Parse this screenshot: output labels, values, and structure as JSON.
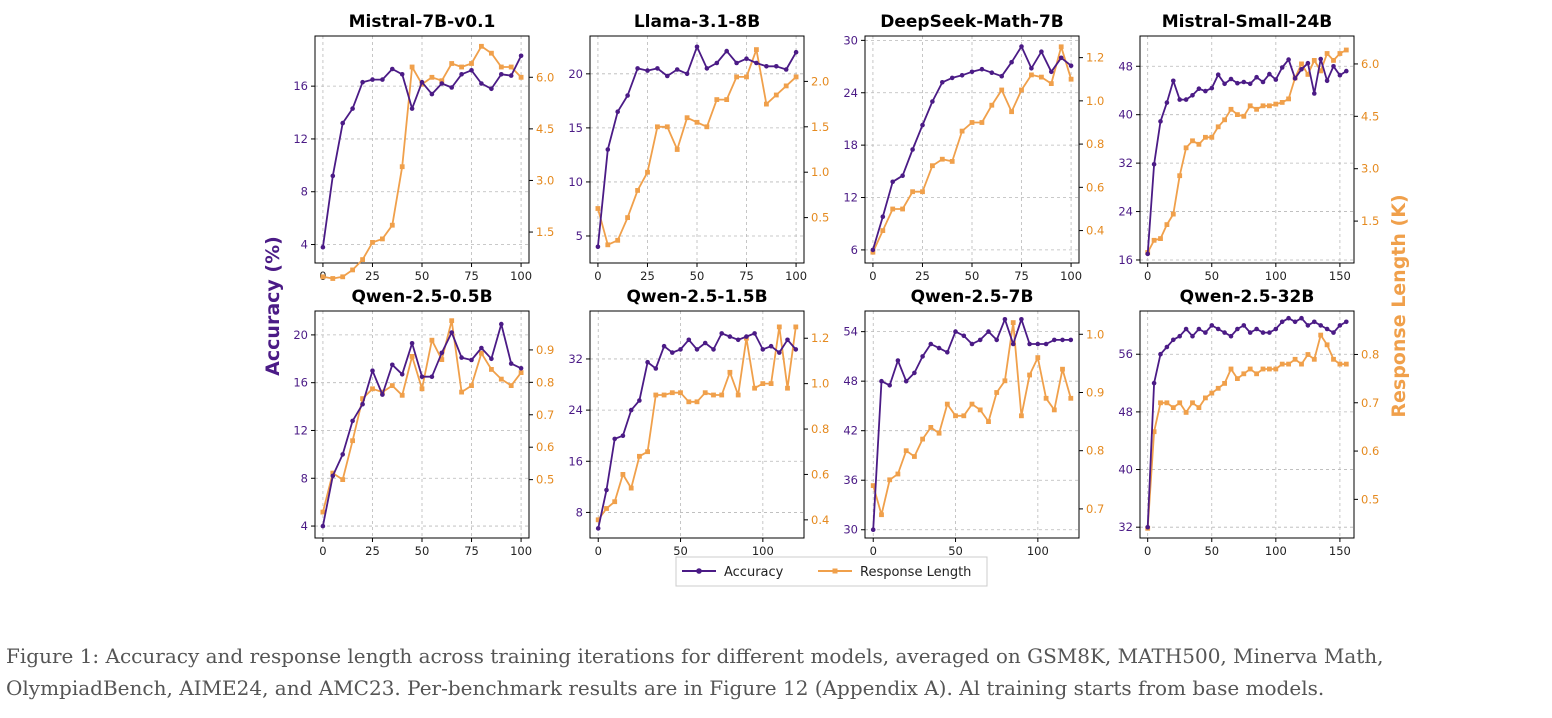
{
  "caption": {
    "line1": "Figure 1: Accuracy and response length across training iterations for different models, averaged on GSM8K, MATH500, Minerva Math,",
    "line2": "OlympiadBench, AIME24, and AMC23. Per-benchmark results are in Figure 12 (Appendix A). Al training starts from base models."
  },
  "colors": {
    "accuracy": "#4b1b86",
    "length": "#f0a04b",
    "length_tick": "#e58a1f",
    "grid": "#b8b8b8"
  },
  "chart_data": {
    "type": "line",
    "ylabel_left": "Accuracy (%)",
    "ylabel_right": "Response Length (K)",
    "legend": [
      "Accuracy",
      "Response Length"
    ],
    "legend_placement": "bottom-center",
    "grid": true,
    "panels": [
      {
        "title": "Mistral-7B-v0.1",
        "xlim": [
          -4,
          104
        ],
        "xticks": [
          0,
          25,
          50,
          75,
          100
        ],
        "ylim_left": [
          2.6,
          19.8
        ],
        "yticks_left": [
          4,
          8,
          12,
          16
        ],
        "ylim_right": [
          0.6,
          7.2
        ],
        "yticks_right": [
          1.5,
          3.0,
          4.5,
          6.0
        ],
        "x": [
          0,
          5,
          10,
          15,
          20,
          25,
          30,
          35,
          40,
          45,
          50,
          55,
          60,
          65,
          70,
          75,
          80,
          85,
          90,
          95,
          100
        ],
        "accuracy": [
          3.8,
          9.2,
          13.2,
          14.3,
          16.3,
          16.5,
          16.5,
          17.3,
          16.9,
          14.3,
          16.3,
          15.4,
          16.2,
          15.9,
          16.9,
          17.2,
          16.2,
          15.8,
          16.9,
          16.8,
          18.3
        ],
        "response_length": [
          0.2,
          0.15,
          0.2,
          0.4,
          0.7,
          1.2,
          1.3,
          1.7,
          3.4,
          6.3,
          5.8,
          6.0,
          5.9,
          6.4,
          6.3,
          6.4,
          6.9,
          6.7,
          6.3,
          6.3,
          6.0
        ]
      },
      {
        "title": "Llama-3.1-8B",
        "xlim": [
          -4,
          104
        ],
        "xticks": [
          0,
          25,
          50,
          75,
          100
        ],
        "ylim_left": [
          2.5,
          23.5
        ],
        "yticks_left": [
          5,
          10,
          15,
          20
        ],
        "ylim_right": [
          0.0,
          2.5
        ],
        "yticks_right": [
          0.5,
          1.0,
          1.5,
          2.0
        ],
        "x": [
          0,
          5,
          10,
          15,
          20,
          25,
          30,
          35,
          40,
          45,
          50,
          55,
          60,
          65,
          70,
          75,
          80,
          85,
          90,
          95,
          100
        ],
        "accuracy": [
          4.0,
          13.0,
          16.5,
          18.0,
          20.5,
          20.3,
          20.5,
          19.8,
          20.4,
          20.0,
          22.5,
          20.5,
          21.0,
          22.1,
          21.0,
          21.4,
          21.0,
          20.7,
          20.7,
          20.4,
          22.0
        ],
        "response_length": [
          0.6,
          0.2,
          0.25,
          0.5,
          0.8,
          1.0,
          1.5,
          1.5,
          1.25,
          1.6,
          1.55,
          1.5,
          1.8,
          1.8,
          2.05,
          2.05,
          2.35,
          1.75,
          1.85,
          1.95,
          2.05
        ]
      },
      {
        "title": "DeepSeek-Math-7B",
        "xlim": [
          -4,
          104
        ],
        "xticks": [
          0,
          25,
          50,
          75,
          100
        ],
        "ylim_left": [
          4.5,
          30.5
        ],
        "yticks_left": [
          6,
          12,
          18,
          24,
          30
        ],
        "ylim_right": [
          0.25,
          1.3
        ],
        "yticks_right": [
          0.4,
          0.6,
          0.8,
          1.0,
          1.2
        ],
        "x": [
          0,
          5,
          10,
          15,
          20,
          25,
          30,
          35,
          40,
          45,
          50,
          55,
          60,
          65,
          70,
          75,
          80,
          85,
          90,
          95,
          100
        ],
        "accuracy": [
          6.0,
          9.8,
          13.8,
          14.5,
          17.5,
          20.3,
          23.0,
          25.2,
          25.7,
          26.0,
          26.4,
          26.7,
          26.3,
          25.9,
          27.5,
          29.3,
          26.8,
          28.7,
          26.4,
          28.0,
          27.1
        ],
        "response_length": [
          0.3,
          0.4,
          0.5,
          0.5,
          0.58,
          0.58,
          0.7,
          0.73,
          0.72,
          0.86,
          0.9,
          0.9,
          0.98,
          1.05,
          0.95,
          1.05,
          1.12,
          1.11,
          1.08,
          1.25,
          1.1
        ]
      },
      {
        "title": "Mistral-Small-24B",
        "xlim": [
          -6,
          161
        ],
        "xticks": [
          0,
          50,
          100,
          150
        ],
        "ylim_left": [
          15.5,
          53.0
        ],
        "yticks_left": [
          16,
          24,
          32,
          40,
          48
        ],
        "ylim_right": [
          0.3,
          6.8
        ],
        "yticks_right": [
          1.5,
          3.0,
          4.5,
          6.0
        ],
        "x": [
          0,
          5,
          10,
          15,
          20,
          25,
          30,
          35,
          40,
          45,
          50,
          55,
          60,
          65,
          70,
          75,
          80,
          85,
          90,
          95,
          100,
          105,
          110,
          115,
          120,
          125,
          130,
          135,
          140,
          145,
          150,
          155
        ],
        "accuracy": [
          17.0,
          31.8,
          38.9,
          42.0,
          45.6,
          42.5,
          42.5,
          43.2,
          44.3,
          43.9,
          44.4,
          46.6,
          45.1,
          45.9,
          45.2,
          45.4,
          45.1,
          46.2,
          45.4,
          46.7,
          45.8,
          47.8,
          49.1,
          46.0,
          47.5,
          48.5,
          43.5,
          49.2,
          45.6,
          48.0,
          46.5,
          47.2
        ],
        "response_length": [
          0.6,
          0.95,
          1.0,
          1.4,
          1.7,
          2.8,
          3.6,
          3.8,
          3.7,
          3.9,
          3.9,
          4.2,
          4.4,
          4.7,
          4.55,
          4.5,
          4.8,
          4.7,
          4.8,
          4.8,
          4.85,
          4.9,
          5.0,
          5.6,
          6.0,
          5.7,
          6.1,
          5.8,
          6.3,
          6.1,
          6.3,
          6.4
        ]
      },
      {
        "title": "Qwen-2.5-0.5B",
        "xlim": [
          -4,
          104
        ],
        "xticks": [
          0,
          25,
          50,
          75,
          100
        ],
        "ylim_left": [
          3.0,
          22.0
        ],
        "yticks_left": [
          4,
          8,
          12,
          16,
          20
        ],
        "ylim_right": [
          0.32,
          1.02
        ],
        "yticks_right": [
          0.5,
          0.6,
          0.7,
          0.8,
          0.9
        ],
        "x": [
          0,
          5,
          10,
          15,
          20,
          25,
          30,
          35,
          40,
          45,
          50,
          55,
          60,
          65,
          70,
          75,
          80,
          85,
          90,
          95,
          100
        ],
        "accuracy": [
          4.0,
          8.2,
          10.0,
          12.8,
          14.2,
          17.0,
          15.0,
          17.5,
          16.7,
          19.3,
          16.5,
          16.5,
          18.5,
          20.2,
          18.1,
          17.9,
          18.9,
          18.0,
          20.9,
          17.6,
          17.2
        ],
        "response_length": [
          0.4,
          0.52,
          0.5,
          0.62,
          0.75,
          0.78,
          0.77,
          0.79,
          0.76,
          0.88,
          0.78,
          0.93,
          0.87,
          0.99,
          0.77,
          0.79,
          0.89,
          0.84,
          0.81,
          0.79,
          0.83
        ]
      },
      {
        "title": "Qwen-2.5-1.5B",
        "xlim": [
          -5,
          125
        ],
        "xticks": [
          0,
          50,
          100
        ],
        "ylim_left": [
          4.0,
          39.5
        ],
        "yticks_left": [
          8,
          16,
          24,
          32
        ],
        "ylim_right": [
          0.32,
          1.32
        ],
        "yticks_right": [
          0.4,
          0.6,
          0.8,
          1.0,
          1.2
        ],
        "x": [
          0,
          5,
          10,
          15,
          20,
          25,
          30,
          35,
          40,
          45,
          50,
          55,
          60,
          65,
          70,
          75,
          80,
          85,
          90,
          95,
          100,
          105,
          110,
          115,
          120
        ],
        "accuracy": [
          5.5,
          11.5,
          19.5,
          20.0,
          24.0,
          25.5,
          31.5,
          30.5,
          34.0,
          33.0,
          33.5,
          35.0,
          33.5,
          34.5,
          33.5,
          36.0,
          35.5,
          35.0,
          35.5,
          36.0,
          33.5,
          34.0,
          33.0,
          35.0,
          33.5
        ],
        "response_length": [
          0.4,
          0.45,
          0.48,
          0.6,
          0.54,
          0.68,
          0.7,
          0.95,
          0.95,
          0.96,
          0.96,
          0.92,
          0.92,
          0.96,
          0.95,
          0.95,
          1.05,
          0.95,
          1.2,
          0.98,
          1.0,
          1.0,
          1.25,
          0.98,
          1.25
        ]
      },
      {
        "title": "Qwen-2.5-7B",
        "xlim": [
          -5,
          125
        ],
        "xticks": [
          0,
          50,
          100
        ],
        "ylim_left": [
          29.0,
          56.5
        ],
        "yticks_left": [
          30,
          36,
          42,
          48,
          54
        ],
        "ylim_right": [
          0.65,
          1.04
        ],
        "yticks_right": [
          0.7,
          0.8,
          0.9,
          1.0
        ],
        "x": [
          0,
          5,
          10,
          15,
          20,
          25,
          30,
          35,
          40,
          45,
          50,
          55,
          60,
          65,
          70,
          75,
          80,
          85,
          90,
          95,
          100,
          105,
          110,
          115,
          120
        ],
        "accuracy": [
          30.0,
          48.0,
          47.5,
          50.5,
          48.0,
          49.0,
          51.0,
          52.5,
          52.0,
          51.5,
          54.0,
          53.5,
          52.5,
          53.0,
          54.0,
          53.0,
          55.5,
          52.5,
          55.5,
          52.5,
          52.5,
          52.5,
          53.0,
          53.0,
          53.0
        ],
        "response_length": [
          0.74,
          0.69,
          0.75,
          0.76,
          0.8,
          0.79,
          0.82,
          0.84,
          0.83,
          0.88,
          0.86,
          0.86,
          0.88,
          0.87,
          0.85,
          0.9,
          0.92,
          1.02,
          0.86,
          0.93,
          0.96,
          0.89,
          0.87,
          0.94,
          0.89
        ]
      },
      {
        "title": "Qwen-2.5-32B",
        "xlim": [
          -6,
          161
        ],
        "xticks": [
          0,
          50,
          100,
          150
        ],
        "ylim_left": [
          30.5,
          62.0
        ],
        "yticks_left": [
          32,
          40,
          48,
          56
        ],
        "ylim_right": [
          0.42,
          0.89
        ],
        "yticks_right": [
          0.5,
          0.6,
          0.7,
          0.8
        ],
        "x": [
          0,
          5,
          10,
          15,
          20,
          25,
          30,
          35,
          40,
          45,
          50,
          55,
          60,
          65,
          70,
          75,
          80,
          85,
          90,
          95,
          100,
          105,
          110,
          115,
          120,
          125,
          130,
          135,
          140,
          145,
          150,
          155
        ],
        "accuracy": [
          32.0,
          52.0,
          56.0,
          57.0,
          58.0,
          58.5,
          59.5,
          58.5,
          59.5,
          59.0,
          60.0,
          59.5,
          59.0,
          58.5,
          59.5,
          60.0,
          59.0,
          59.5,
          59.0,
          59.0,
          59.5,
          60.5,
          61.0,
          60.5,
          61.0,
          60.0,
          60.5,
          60.0,
          59.5,
          59.0,
          60.0,
          60.5
        ],
        "response_length": [
          0.44,
          0.64,
          0.7,
          0.7,
          0.69,
          0.7,
          0.68,
          0.7,
          0.69,
          0.71,
          0.72,
          0.73,
          0.74,
          0.77,
          0.75,
          0.76,
          0.77,
          0.76,
          0.77,
          0.77,
          0.77,
          0.78,
          0.78,
          0.79,
          0.78,
          0.8,
          0.79,
          0.84,
          0.82,
          0.79,
          0.78,
          0.78
        ]
      }
    ]
  }
}
